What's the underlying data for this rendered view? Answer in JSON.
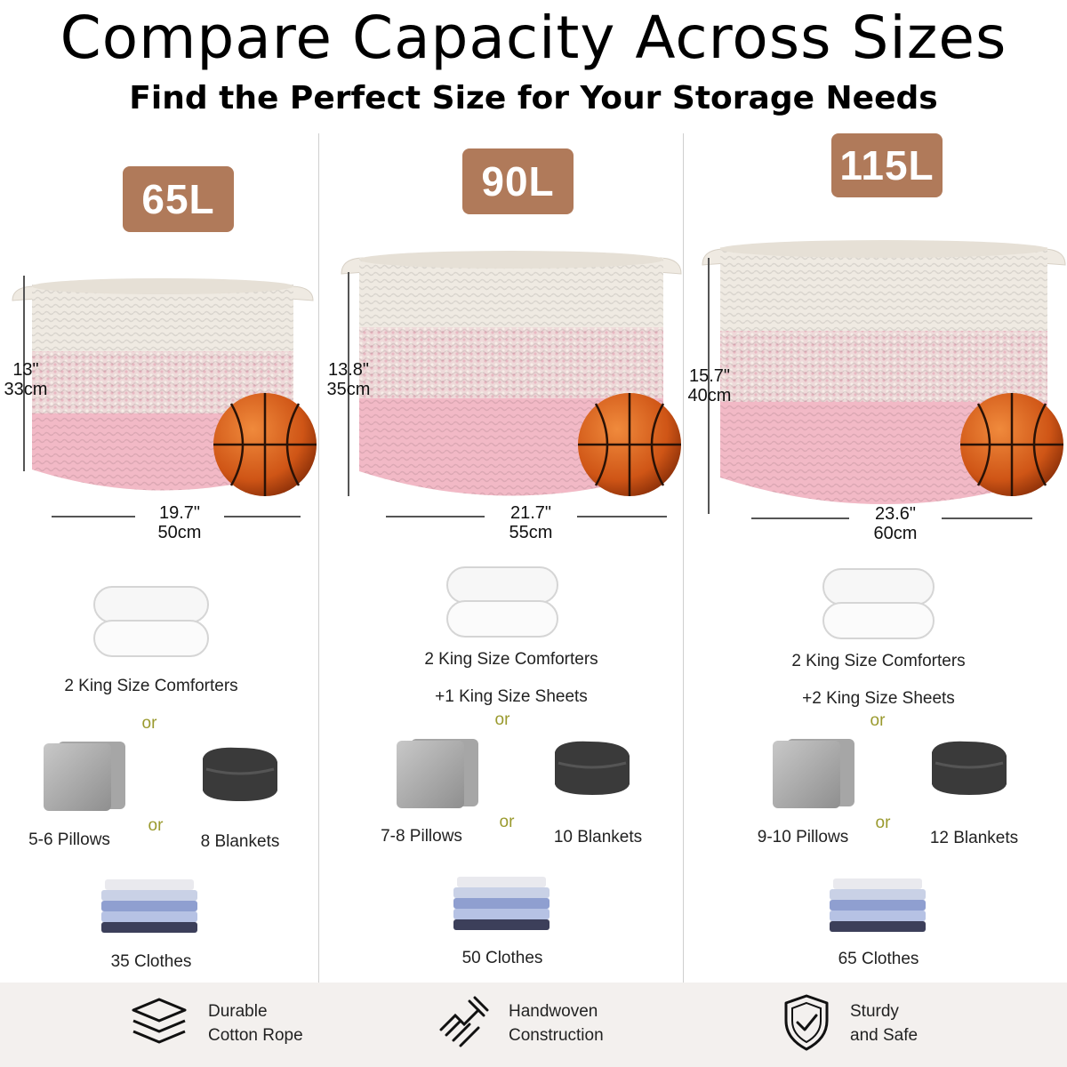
{
  "header": {
    "title": "Compare Capacity Across Sizes",
    "subtitle": "Find the Perfect Size for Your Storage Needs"
  },
  "colors": {
    "badge": "#b07a5a",
    "basket_cream": "#efeae2",
    "basket_pink": "#f2b9c6",
    "ball": "#d9601c",
    "or_text": "#9a9a2e",
    "footer_bg": "#f3f0ee"
  },
  "sizes": [
    {
      "capacity": "65L",
      "height_in": "13\"",
      "height_cm": "33cm",
      "width_in": "19.7\"",
      "width_cm": "50cm",
      "comforters": "2 King Size Comforters",
      "sheets": "",
      "or1": "or",
      "pillows": "5-6 Pillows",
      "or2": "or",
      "blankets": "8 Blankets",
      "clothes": "35 Clothes"
    },
    {
      "capacity": "90L",
      "height_in": "13.8\"",
      "height_cm": "35cm",
      "width_in": "21.7\"",
      "width_cm": "55cm",
      "comforters": "2 King Size Comforters",
      "sheets": "+1 King Size Sheets",
      "or1": "or",
      "pillows": "7-8 Pillows",
      "or2": "or",
      "blankets": "10 Blankets",
      "clothes": "50 Clothes"
    },
    {
      "capacity": "115L",
      "height_in": "15.7\"",
      "height_cm": "40cm",
      "width_in": "23.6\"",
      "width_cm": "60cm",
      "comforters": "2 King Size Comforters",
      "sheets": "+2 King Size Sheets",
      "or1": "or",
      "pillows": "9-10 Pillows",
      "or2": "or",
      "blankets": "12 Blankets",
      "clothes": "65 Clothes"
    }
  ],
  "features": [
    {
      "icon": "layers-icon",
      "line1": "Durable",
      "line2": "Cotton Rope"
    },
    {
      "icon": "woven-hands-icon",
      "line1": "Handwoven",
      "line2": "Construction"
    },
    {
      "icon": "shield-check-icon",
      "line1": "Sturdy",
      "line2": "and Safe"
    }
  ]
}
